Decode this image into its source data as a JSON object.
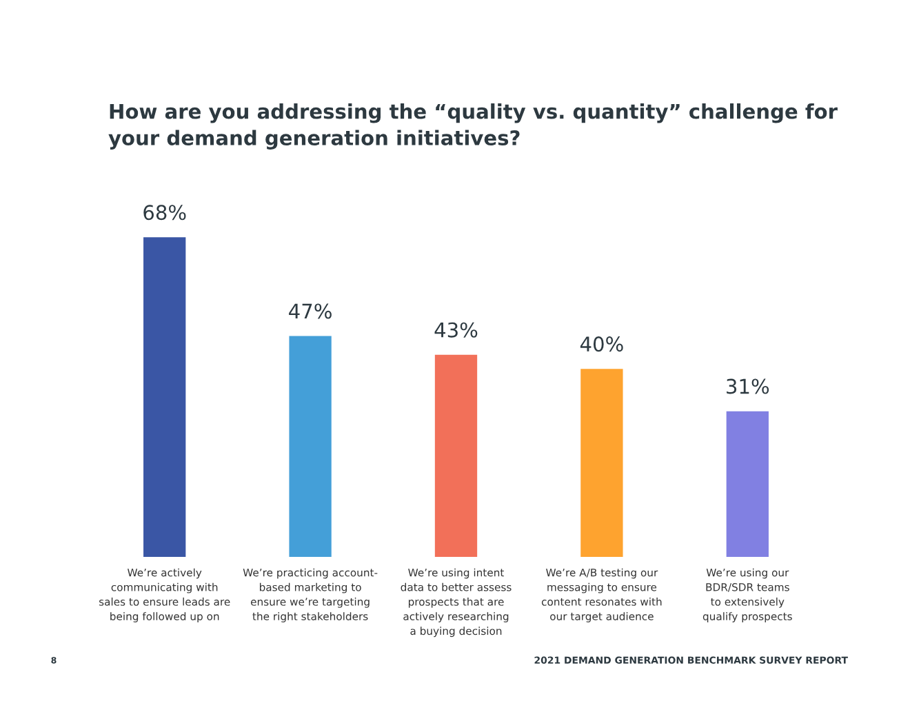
{
  "chart_data": {
    "type": "bar",
    "title": "How are you addressing the “quality vs. quantity” challenge for\nyour demand generation initiatives?",
    "categories": [
      "We’re actively\ncommunicating with\nsales to ensure leads are\nbeing followed up on",
      "We’re practicing account-\nbased marketing to\nensure we’re targeting\nthe right stakeholders",
      "We’re using intent\ndata to better assess\nprospects that are\nactively researching\na buying decision",
      "We’re A/B testing our\nmessaging to ensure\ncontent resonates with\nour target audience",
      "We’re using our\nBDR/SDR teams\nto extensively\nqualify prospects"
    ],
    "values": [
      68,
      47,
      43,
      40,
      31
    ],
    "colors": [
      "#3a56a5",
      "#449fd8",
      "#f27059",
      "#fea32f",
      "#8180e2"
    ],
    "value_labels": [
      "68%",
      "47%",
      "43%",
      "40%",
      "31%"
    ],
    "annotations": [
      "8",
      "2021 DEMAND GENERATION BENCHMARK SURVEY REPORT"
    ]
  }
}
